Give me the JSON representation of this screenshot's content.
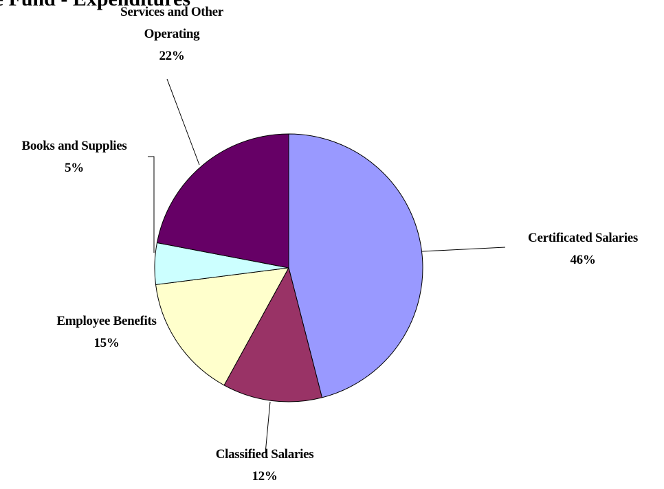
{
  "chart_data": {
    "type": "pie",
    "title": "se Fund - Expenditures",
    "categories": [
      "Certificated Salaries",
      "Classified Salaries",
      "Employee Benefits",
      "Books and Supplies",
      "Services and Other Operating"
    ],
    "values": [
      46,
      12,
      15,
      5,
      22
    ],
    "value_labels": [
      "46%",
      "12%",
      "15%",
      "5%",
      "22%"
    ],
    "colors": [
      "#9999ff",
      "#993366",
      "#ffffcc",
      "#ccffff",
      "#660066"
    ]
  }
}
